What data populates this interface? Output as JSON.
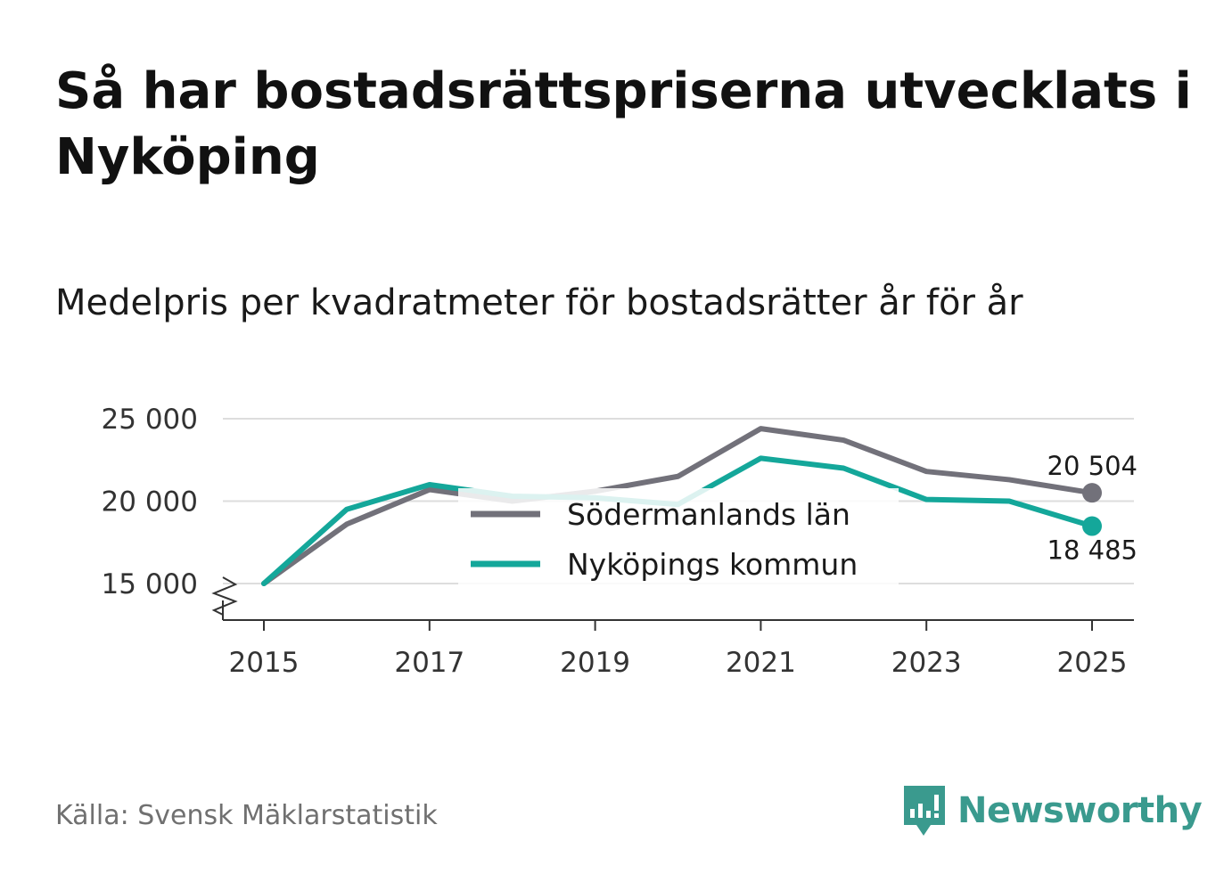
{
  "header": {
    "title": "Så har bostadsrättspriserna utvecklats i Nyköping",
    "subtitle": "Medelpris per kvadratmeter för bostadsrätter år för år"
  },
  "footer": {
    "source": "Källa: Svensk Mäklarstatistik",
    "brand": "Newsworthy"
  },
  "colors": {
    "sodermanland": "#72717a",
    "nykoping": "#14a79a",
    "gridline": "#dddddd",
    "axis": "#333333",
    "brand": "#3a9a8e"
  },
  "chart_data": {
    "type": "line",
    "title": "Medelpris per kvadratmeter för bostadsrätter år för år",
    "xlabel": "",
    "ylabel": "",
    "x": [
      2015,
      2016,
      2017,
      2018,
      2019,
      2020,
      2021,
      2022,
      2023,
      2024,
      2025
    ],
    "x_ticks": [
      "2015",
      "2017",
      "2019",
      "2021",
      "2023",
      "2025"
    ],
    "y_ticks": [
      {
        "value": 15000,
        "label": "15 000"
      },
      {
        "value": 20000,
        "label": "20 000"
      },
      {
        "value": 25000,
        "label": "25 000"
      }
    ],
    "ylim": [
      13000,
      25000
    ],
    "y_axis_break": true,
    "grid": true,
    "legend_position": "center",
    "series": [
      {
        "name": "Södermanlands län",
        "color_key": "sodermanland",
        "values": [
          15000,
          18600,
          20700,
          20000,
          20600,
          21500,
          24400,
          23700,
          21800,
          21300,
          20504
        ],
        "end_label": "20 504",
        "end_label_position": "above"
      },
      {
        "name": "Nyköpings kommun",
        "color_key": "nykoping",
        "values": [
          15000,
          19500,
          21000,
          20300,
          20200,
          19800,
          22600,
          22000,
          20100,
          20000,
          18485
        ],
        "end_label": "18 485",
        "end_label_position": "below"
      }
    ]
  }
}
